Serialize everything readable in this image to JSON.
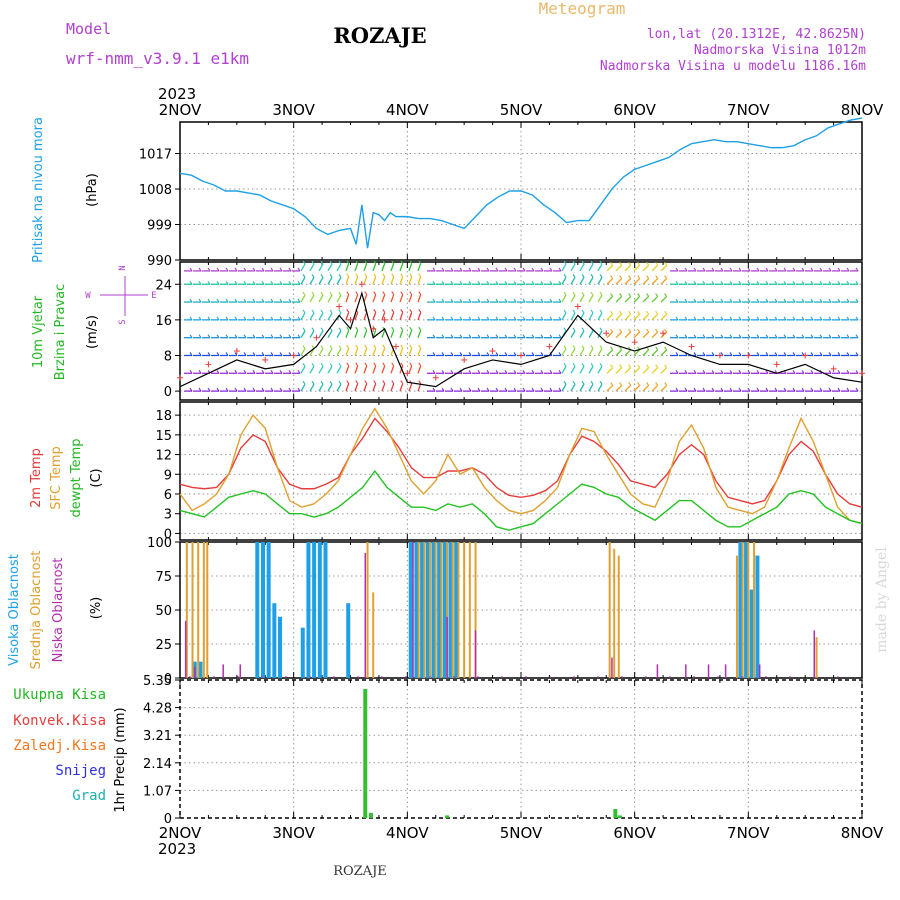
{
  "header": {
    "model_label": "Model",
    "model_name": "wrf-nmm_v3.9.1 e1km",
    "station": "ROZAJE",
    "product": "Meteogram",
    "lonlat": "lon,lat (20.1312E, 42.8625N)",
    "elevation": "Nadmorska Visina 1012m",
    "model_elevation": "Nadmorska Visina u modelu 1186.16m",
    "year": "2023",
    "footer_station": "ROZAJE",
    "watermark": "made by Angel"
  },
  "colors": {
    "pressure": "#1ea0e6",
    "temp2m": "#e83c3c",
    "sfc": "#e0a030",
    "dewpt": "#22c322",
    "high_cloud": "#1ea0e6",
    "mid_cloud": "#e0a030",
    "low_cloud": "#b030b0",
    "precip": "#30c030",
    "green_label": "#22b822",
    "red_label": "#e83c3c",
    "orange_label": "#f07820",
    "blue_label": "#3030e0",
    "teal_label": "#20b0b0",
    "purple": "#b040d0",
    "gold": "#e8b86a"
  },
  "chart_data": [
    {
      "type": "line",
      "panel": "pressure",
      "ylabel": [
        "Pritisak na nivou mora",
        "(hPa)"
      ],
      "yticks": [
        990,
        999,
        1008,
        1017
      ],
      "ylim": [
        990,
        1025
      ],
      "x_start": "2NOV",
      "x_end": "8NOV",
      "x_ticks": [
        "2NOV",
        "3NOV",
        "4NOV",
        "5NOV",
        "6NOV",
        "7NOV",
        "8NOV"
      ],
      "series": [
        {
          "x": [
            0,
            0.1,
            0.2,
            0.3,
            0.4,
            0.5,
            0.6,
            0.7,
            0.8,
            0.9,
            1.0,
            1.1,
            1.2,
            1.3,
            1.4,
            1.5,
            1.55,
            1.6,
            1.65,
            1.7,
            1.75,
            1.8,
            1.85,
            1.9,
            2.0,
            2.1,
            2.2,
            2.3,
            2.4,
            2.5,
            2.6,
            2.7,
            2.8,
            2.9,
            3.0,
            3.1,
            3.2,
            3.3,
            3.4,
            3.5,
            3.6,
            3.7,
            3.8,
            3.9,
            4.0,
            4.1,
            4.2,
            4.3,
            4.4,
            4.5,
            4.6,
            4.7,
            4.8,
            4.9,
            5.0,
            5.1,
            5.2,
            5.3,
            5.4,
            5.5,
            5.6,
            5.7,
            5.8,
            5.9,
            6.0
          ],
          "values": [
            1012,
            1011.5,
            1010,
            1009,
            1007.5,
            1007.5,
            1007,
            1006.5,
            1005,
            1004,
            1003,
            1001,
            998,
            996.5,
            997.5,
            998,
            994,
            1004,
            993,
            1002,
            1001.5,
            1000,
            1002,
            1001,
            1001,
            1000.5,
            1000.5,
            1000,
            999,
            998,
            1001,
            1004,
            1006,
            1007.5,
            1007.5,
            1006.5,
            1004,
            1002,
            999.5,
            1000,
            1000,
            1004,
            1008,
            1011,
            1013,
            1014,
            1015,
            1016,
            1018,
            1019.5,
            1020,
            1020.5,
            1020,
            1020,
            1019.5,
            1019,
            1018.5,
            1018.5,
            1019,
            1020.5,
            1021.5,
            1023.5,
            1024.5,
            1025.5,
            1026
          ]
        }
      ]
    },
    {
      "type": "barbs",
      "panel": "wind",
      "ylabel": [
        "10m Vjetar",
        "Brzina i Pravac",
        "(m/s)"
      ],
      "compass": [
        "N",
        "W",
        "E",
        "S"
      ],
      "yticks": [
        0,
        8,
        16,
        24
      ],
      "ylim": [
        -2,
        29
      ],
      "series": [
        {
          "name": "wind speed",
          "x": [
            0,
            0.25,
            0.5,
            0.75,
            1.0,
            1.2,
            1.4,
            1.5,
            1.6,
            1.7,
            1.8,
            1.9,
            2.0,
            2.25,
            2.5,
            2.75,
            3.0,
            3.25,
            3.5,
            3.75,
            4.0,
            4.25,
            4.5,
            4.75,
            5.0,
            5.25,
            5.5,
            5.75,
            6.0
          ],
          "values": [
            1,
            4,
            7,
            5,
            6,
            10,
            17,
            14,
            22,
            12,
            14,
            8,
            2,
            1,
            5,
            7,
            6,
            8,
            17,
            11,
            9,
            11,
            8,
            6,
            6,
            4,
            6,
            3,
            2
          ]
        }
      ]
    },
    {
      "type": "line",
      "panel": "temperature",
      "ylabel": [
        "2m Temp",
        "SFC Temp",
        "dewpt Temp",
        "(C)"
      ],
      "yticks": [
        0,
        3,
        6,
        9,
        12,
        15,
        18
      ],
      "ylim": [
        -1,
        20
      ],
      "series": [
        {
          "name": "2m Temp",
          "values": [
            7.5,
            7,
            6.8,
            7,
            9,
            13,
            15,
            14,
            10,
            7.5,
            6.8,
            6.8,
            7.5,
            8.5,
            12,
            14.5,
            17.5,
            15.5,
            13,
            10,
            8.5,
            8.5,
            9.5,
            9.5,
            10,
            9,
            7,
            5.8,
            5.5,
            5.8,
            6.5,
            8,
            12,
            14.8,
            14,
            12.5,
            10.5,
            8,
            7.5,
            7,
            9,
            12,
            13.5,
            12,
            8,
            5.5,
            5,
            4.5,
            5,
            8,
            12,
            14,
            12.5,
            9,
            6,
            4.5,
            4
          ]
        },
        {
          "name": "SFC Temp",
          "values": [
            6,
            3.5,
            4.5,
            6,
            9,
            15,
            18,
            16,
            10,
            5,
            4,
            4.5,
            6,
            8,
            12,
            16,
            19,
            16,
            12,
            8,
            6,
            8,
            12,
            9,
            10,
            7,
            5,
            3.5,
            3,
            3.5,
            5,
            7,
            12,
            16,
            15.5,
            12,
            9,
            6,
            4.5,
            4,
            8,
            14,
            16.5,
            13,
            7,
            4,
            3.5,
            3,
            4,
            8,
            13,
            17.5,
            14,
            9,
            4,
            2,
            1.5
          ]
        },
        {
          "name": "dewpt Temp",
          "values": [
            3.5,
            3,
            2.5,
            4,
            5.5,
            6,
            6.5,
            6,
            4.5,
            3,
            3,
            2.5,
            3,
            4,
            5.5,
            7,
            9.5,
            7,
            5.5,
            4,
            4,
            3.5,
            4.5,
            4,
            4.5,
            3,
            1,
            0.5,
            1,
            1.5,
            3,
            4.5,
            6,
            7.5,
            7,
            6,
            5.5,
            4,
            3,
            2,
            3.5,
            5,
            5,
            3.5,
            2,
            1,
            1,
            2,
            3,
            4,
            6,
            6.5,
            6,
            4,
            3,
            2,
            1.5
          ]
        }
      ]
    },
    {
      "type": "bar",
      "panel": "clouds",
      "ylabel": [
        "Visoka Oblacnost",
        "Srednja Oblacnost",
        "Niska Oblacnost",
        "(%)"
      ],
      "yticks": [
        0,
        25,
        50,
        75,
        100
      ],
      "ylim": [
        0,
        100
      ],
      "series": [
        {
          "name": "Visoka Oblacnost",
          "x": [
            0.13,
            0.18,
            0.68,
            0.73,
            0.78,
            0.83,
            0.88,
            1.08,
            1.13,
            1.18,
            1.23,
            1.28,
            1.48,
            2.03,
            2.08,
            2.13,
            2.18,
            2.23,
            2.28,
            2.33,
            2.38,
            2.43,
            4.93,
            4.98,
            5.03,
            5.08
          ],
          "values": [
            12,
            12,
            100,
            100,
            100,
            55,
            45,
            37,
            100,
            100,
            100,
            100,
            55,
            100,
            100,
            100,
            100,
            100,
            100,
            100,
            100,
            100,
            100,
            100,
            65,
            90
          ]
        },
        {
          "name": "Srednja Oblacnost",
          "x": [
            0.06,
            0.11,
            0.16,
            0.21,
            0.24,
            1.65,
            1.7,
            2.1,
            2.15,
            2.2,
            2.25,
            2.3,
            2.35,
            2.4,
            2.45,
            2.5,
            2.55,
            2.6,
            3.78,
            3.82,
            3.86,
            4.9,
            4.95,
            5.0,
            5.05,
            5.6
          ],
          "values": [
            100,
            100,
            100,
            100,
            100,
            100,
            63,
            100,
            100,
            100,
            100,
            100,
            100,
            100,
            100,
            100,
            100,
            100,
            100,
            95,
            90,
            90,
            100,
            100,
            100,
            30
          ]
        },
        {
          "name": "Niska Oblacnost",
          "x": [
            0.05,
            0.13,
            0.38,
            0.53,
            1.63,
            2.05,
            2.35,
            2.6,
            3.8,
            4.2,
            4.45,
            4.65,
            4.8,
            5.1,
            5.58
          ],
          "values": [
            42,
            8,
            10,
            10,
            92,
            100,
            45,
            35,
            15,
            10,
            10,
            10,
            10,
            10,
            35
          ]
        }
      ]
    },
    {
      "type": "bar",
      "panel": "precip",
      "ylabel": [
        "1hr Precip (mm)"
      ],
      "legend": [
        "Ukupna Kisa",
        "Konvek.Kisa",
        "Zaledj.Kisa",
        "Snijeg",
        "Grad"
      ],
      "yticks": [
        0,
        1.07,
        2.14,
        3.21,
        4.28,
        5.35
      ],
      "ylim": [
        0,
        5.35
      ],
      "series": [
        {
          "name": "Ukupna Kisa",
          "x": [
            1.63,
            1.68,
            2.35,
            3.83,
            3.87
          ],
          "values": [
            5.0,
            0.2,
            0.1,
            0.35,
            0.1
          ]
        }
      ]
    }
  ]
}
